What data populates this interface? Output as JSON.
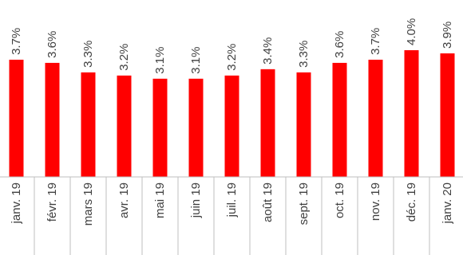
{
  "chart_data": {
    "type": "bar",
    "categories": [
      "janv. 19",
      "févr. 19",
      "mars 19",
      "avr. 19",
      "mai 19",
      "juin 19",
      "juil. 19",
      "août 19",
      "sept. 19",
      "oct. 19",
      "nov. 19",
      "déc. 19",
      "janv. 20"
    ],
    "values": [
      3.7,
      3.6,
      3.3,
      3.2,
      3.1,
      3.1,
      3.2,
      3.4,
      3.3,
      3.6,
      3.7,
      4.0,
      3.9
    ],
    "value_labels": [
      "3.7%",
      "3.6%",
      "3.3%",
      "3.2%",
      "3.1%",
      "3.1%",
      "3.2%",
      "3.4%",
      "3.3%",
      "3.6%",
      "3.7%",
      "4.0%",
      "3.9%"
    ],
    "ylim": [
      0,
      4.0
    ],
    "grid": false,
    "legend": "none",
    "colors": {
      "bar": "#ff0000",
      "axis": "#bfbfbf",
      "text": "#404040"
    }
  }
}
